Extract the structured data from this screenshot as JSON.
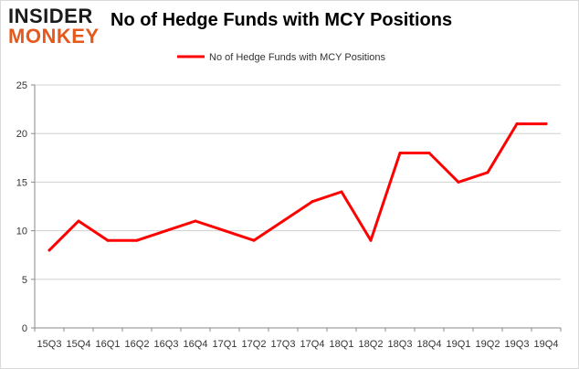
{
  "logo": {
    "line1": "INSIDER",
    "line2": "MONKEY"
  },
  "chart_data": {
    "type": "line",
    "title": "No of Hedge Funds with MCY Positions",
    "xlabel": "",
    "ylabel": "",
    "categories": [
      "15Q3",
      "15Q4",
      "16Q1",
      "16Q2",
      "16Q3",
      "16Q4",
      "17Q1",
      "17Q2",
      "17Q3",
      "17Q4",
      "18Q1",
      "18Q2",
      "18Q3",
      "18Q4",
      "19Q1",
      "19Q2",
      "19Q3",
      "19Q4"
    ],
    "series": [
      {
        "name": "No of Hedge Funds with MCY Positions",
        "color": "#ff0000",
        "values": [
          8,
          11,
          9,
          9,
          10,
          11,
          10,
          9,
          11,
          13,
          14,
          9,
          18,
          18,
          15,
          16,
          21,
          21
        ]
      }
    ],
    "ylim": [
      0,
      25
    ],
    "yticks": [
      0,
      5,
      10,
      15,
      20,
      25
    ],
    "grid": true,
    "legend": "top-center"
  }
}
